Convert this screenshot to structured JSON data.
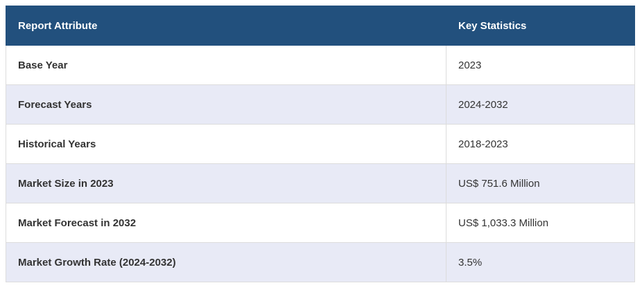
{
  "table": {
    "header": [
      "Report Attribute",
      "Key Statistics"
    ],
    "rows": [
      [
        "Base Year",
        "2023"
      ],
      [
        "Forecast Years",
        "2024-2032"
      ],
      [
        "Historical Years",
        "2018-2023"
      ],
      [
        "Market Size in 2023",
        "US$ 751.6 Million"
      ],
      [
        "Market Forecast in 2032",
        "US$ 1,033.3 Million"
      ],
      [
        "Market Growth Rate (2024-2032)",
        "3.5%"
      ]
    ]
  }
}
